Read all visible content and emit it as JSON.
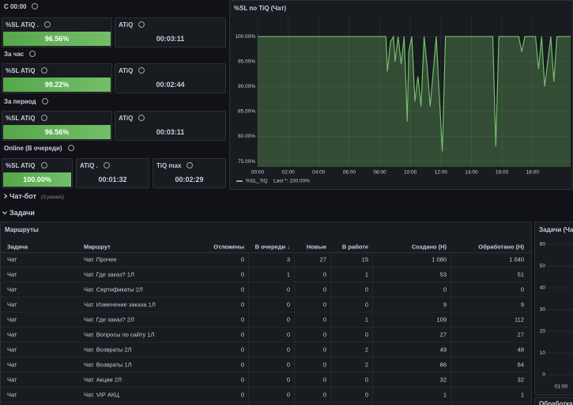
{
  "stats": {
    "sections": [
      {
        "label": "С 00:00",
        "panels": [
          {
            "title": "%SL ATiQ .",
            "value": "96.56%",
            "color": "#56a64b"
          },
          {
            "title": "ATiQ",
            "value": "00:03:11"
          }
        ]
      },
      {
        "label": "За час",
        "panels": [
          {
            "title": "%SL ATiQ",
            "value": "99.22%",
            "color": "#56a64b"
          },
          {
            "title": "ATiQ",
            "value": "00:02:44"
          }
        ]
      },
      {
        "label": "За период",
        "panels": [
          {
            "title": "%SL ATiQ",
            "value": "96.56%",
            "color": "#56a64b"
          },
          {
            "title": "ATiQ",
            "value": "00:03:11"
          }
        ]
      },
      {
        "label": "Online (В очереди)",
        "panels": [
          {
            "title": "%SL ATiQ",
            "value": "100.00%",
            "color": "#56a64b"
          },
          {
            "title": "ATiQ .",
            "value": "00:01:32"
          },
          {
            "title": "TiQ max",
            "value": "00:02:29"
          }
        ]
      }
    ]
  },
  "collapsed_row": {
    "title": "Чат-бот",
    "count": "(3 panels)"
  },
  "row": {
    "title": "Задачи"
  },
  "timeseries": {
    "type": "line",
    "title": "%SL по TiQ (Чат)",
    "x": [
      0,
      8.4,
      8.5,
      8.7,
      8.9,
      9.0,
      9.2,
      9.4,
      9.6,
      9.8,
      9.9,
      10.1,
      10.3,
      10.5,
      10.7,
      10.9,
      11.1,
      11.3,
      11.5,
      11.7,
      11.9,
      12.1,
      12.3,
      12.5,
      15.4,
      15.6,
      15.8,
      17.1,
      17.3,
      17.5,
      18.2,
      18.4,
      18.6,
      18.8,
      19.0,
      19.2,
      19.4,
      19.6,
      20.5
    ],
    "series": [
      {
        "name": "%SL_TiQ",
        "color": "#73bf69",
        "values": [
          100,
          100,
          93,
          99,
          100,
          95,
          100,
          94.5,
          100,
          83,
          97,
          100,
          87,
          92,
          86,
          100,
          94,
          86,
          93,
          100,
          88,
          77,
          100,
          100,
          100,
          78,
          100,
          100,
          97,
          100,
          100,
          93.5,
          100,
          90,
          95,
          100,
          91,
          100,
          100
        ]
      }
    ],
    "legend_calc": "Last *: 100.00%",
    "xlim": [
      0,
      20.5
    ],
    "ylim": [
      73.9,
      104
    ],
    "xticks": [
      {
        "value": 0,
        "label": "00:00"
      },
      {
        "value": 2,
        "label": "02:00"
      },
      {
        "value": 4,
        "label": "04:00"
      },
      {
        "value": 6,
        "label": "06:00"
      },
      {
        "value": 8,
        "label": "08:00"
      },
      {
        "value": 10,
        "label": "10:00"
      },
      {
        "value": 12,
        "label": "12:00"
      },
      {
        "value": 14,
        "label": "14:00"
      },
      {
        "value": 16,
        "label": "16:00"
      },
      {
        "value": 18,
        "label": "18:00"
      }
    ],
    "yticks": [
      {
        "value": 75,
        "label": "75.00%"
      },
      {
        "value": 80,
        "label": "80.00%"
      },
      {
        "value": 85,
        "label": "85.00%"
      },
      {
        "value": 90,
        "label": "90.00%"
      },
      {
        "value": 95,
        "label": "95.00%"
      },
      {
        "value": 100,
        "label": "100.00%"
      }
    ],
    "grid": true
  },
  "table": {
    "title": "Маршруты",
    "columns": [
      "Задача",
      "Маршрут",
      "Отложены",
      "В очереди ↓",
      "Новые",
      "В работе",
      "Создано (Н)",
      "Обработано (Н)"
    ],
    "rows": [
      [
        "Чат",
        "Чат. Прочее",
        "0",
        "3",
        "27",
        "15",
        "1 080",
        "1 040"
      ],
      [
        "Чат",
        "Чат. Где заказ? 1Л",
        "0",
        "1",
        "0",
        "1",
        "53",
        "51"
      ],
      [
        "Чат",
        "Чат. Сертификаты 2Л",
        "0",
        "0",
        "0",
        "0",
        "0",
        "0"
      ],
      [
        "Чат",
        "Чат. Изменение заказа 1Л",
        "0",
        "0",
        "0",
        "0",
        "9",
        "9"
      ],
      [
        "Чат",
        "Чат. Где заказ? 2Л",
        "0",
        "0",
        "0",
        "1",
        "109",
        "112"
      ],
      [
        "Чат",
        "Чат. Вопросы по сайту 1Л",
        "0",
        "0",
        "0",
        "0",
        "27",
        "27"
      ],
      [
        "Чат",
        "Чат. Возвраты 2Л",
        "0",
        "0",
        "0",
        "2",
        "49",
        "48"
      ],
      [
        "Чат",
        "Чат. Возвраты 1Л",
        "0",
        "0",
        "0",
        "2",
        "86",
        "84"
      ],
      [
        "Чат",
        "Чат. Акции 2Л",
        "0",
        "0",
        "0",
        "0",
        "32",
        "32"
      ],
      [
        "Чат",
        "Чат. VIP АКЦ",
        "0",
        "0",
        "0",
        "0",
        "1",
        "1"
      ]
    ]
  },
  "side_panel": {
    "title": "Задачи (Чат",
    "ylim": [
      0,
      60
    ],
    "yticks": [
      0,
      10,
      20,
      30,
      40,
      50,
      60
    ],
    "x_labels": [
      "01:00"
    ]
  },
  "bottom_panel": {
    "title": "Обработка"
  }
}
